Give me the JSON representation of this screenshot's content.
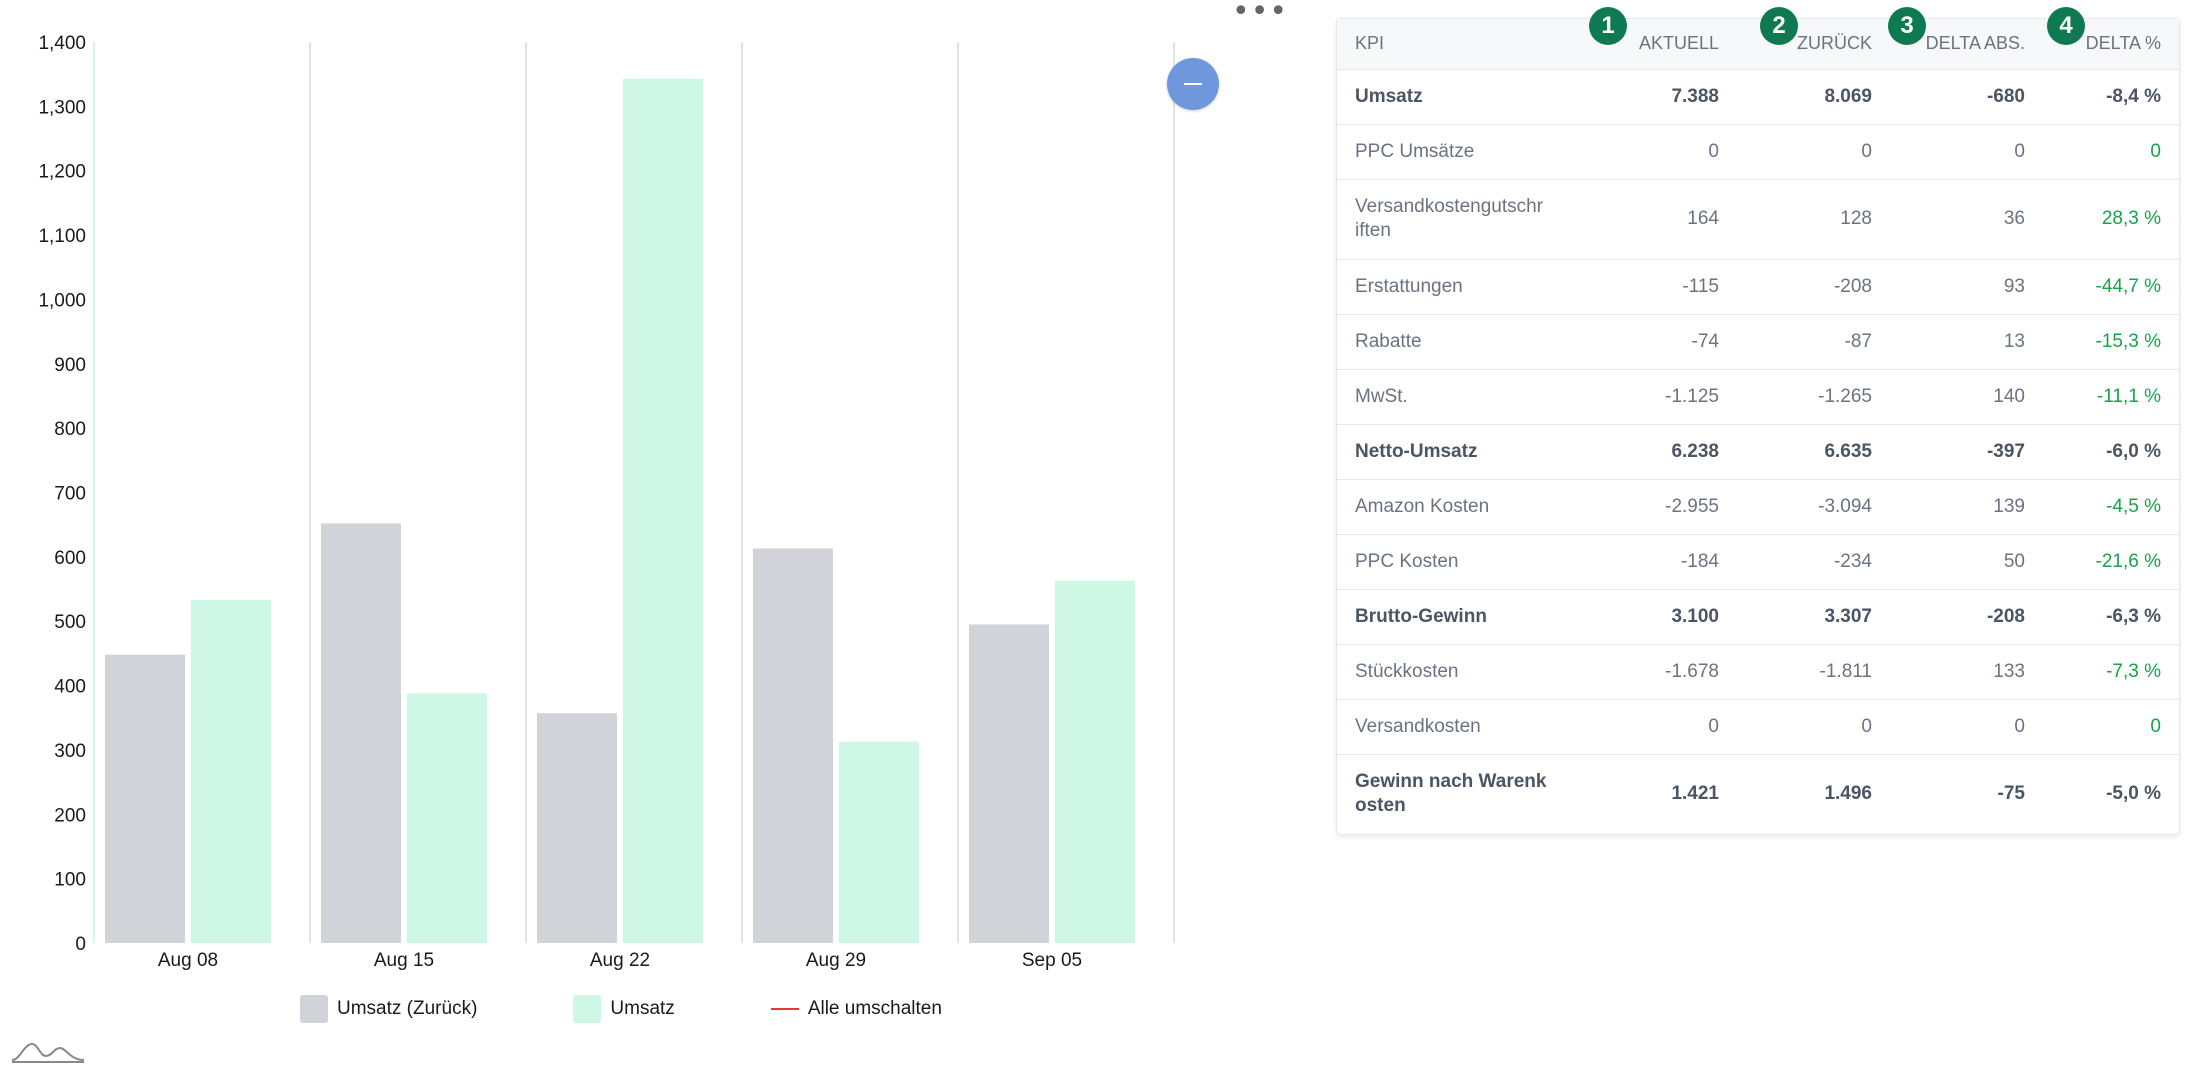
{
  "chart_data": {
    "type": "bar",
    "categories": [
      "Aug 08",
      "Aug 15",
      "Aug 22",
      "Aug 29",
      "Sep 05"
    ],
    "series": [
      {
        "name": "Umsatz (Zurück)",
        "values": [
          448,
          652,
          357,
          613,
          495
        ],
        "color": "#d1d3d9"
      },
      {
        "name": "Umsatz",
        "values": [
          533,
          388,
          1343,
          313,
          563
        ],
        "color": "#cff7e5"
      }
    ],
    "ylim": [
      0,
      1400
    ],
    "y_ticks": [
      "0",
      "100",
      "200",
      "300",
      "400",
      "500",
      "600",
      "700",
      "800",
      "900",
      "1,000",
      "1,100",
      "1,200",
      "1,300",
      "1,400"
    ],
    "grid": "vertical separators between categories",
    "legend_position": "bottom",
    "title": "",
    "xlabel": "",
    "ylabel": ""
  },
  "legend": {
    "items": [
      {
        "label": "Umsatz (Zurück)",
        "color": "#d1d3d9"
      },
      {
        "label": "Umsatz",
        "color": "#cff7e5"
      },
      {
        "label": "Alle umschalten",
        "color": "#e53935"
      }
    ]
  },
  "icons": {
    "more": "more-horizontal-icon",
    "collapse": "minus-circle-icon",
    "logo": "mountain-logo-icon"
  },
  "table": {
    "headers": [
      "KPI",
      "AKTUELL",
      "ZURÜCK",
      "DELTA ABS.",
      "DELTA %"
    ],
    "badges": [
      "1",
      "2",
      "3",
      "4"
    ],
    "rows": [
      {
        "kpi": "Umsatz",
        "aktuell": "7.388",
        "zurueck": "8.069",
        "delta_abs": "-680",
        "delta_pct": "-8,4 %",
        "bold": true,
        "trend": "neg"
      },
      {
        "kpi": "PPC Umsätze",
        "aktuell": "0",
        "zurueck": "0",
        "delta_abs": "0",
        "delta_pct": "0",
        "bold": false,
        "trend": "pos"
      },
      {
        "kpi": "Versandkostengutschr iften",
        "aktuell": "164",
        "zurueck": "128",
        "delta_abs": "36",
        "delta_pct": "28,3 %",
        "bold": false,
        "trend": "pos",
        "tall": true
      },
      {
        "kpi": "Erstattungen",
        "aktuell": "-115",
        "zurueck": "-208",
        "delta_abs": "93",
        "delta_pct": "-44,7 %",
        "bold": false,
        "trend": "pos"
      },
      {
        "kpi": "Rabatte",
        "aktuell": "-74",
        "zurueck": "-87",
        "delta_abs": "13",
        "delta_pct": "-15,3 %",
        "bold": false,
        "trend": "pos"
      },
      {
        "kpi": "MwSt.",
        "aktuell": "-1.125",
        "zurueck": "-1.265",
        "delta_abs": "140",
        "delta_pct": "-11,1 %",
        "bold": false,
        "trend": "pos"
      },
      {
        "kpi": "Netto-Umsatz",
        "aktuell": "6.238",
        "zurueck": "6.635",
        "delta_abs": "-397",
        "delta_pct": "-6,0 %",
        "bold": true,
        "trend": "neg"
      },
      {
        "kpi": "Amazon Kosten",
        "aktuell": "-2.955",
        "zurueck": "-3.094",
        "delta_abs": "139",
        "delta_pct": "-4,5 %",
        "bold": false,
        "trend": "pos"
      },
      {
        "kpi": "PPC Kosten",
        "aktuell": "-184",
        "zurueck": "-234",
        "delta_abs": "50",
        "delta_pct": "-21,6 %",
        "bold": false,
        "trend": "pos"
      },
      {
        "kpi": "Brutto-Gewinn",
        "aktuell": "3.100",
        "zurueck": "3.307",
        "delta_abs": "-208",
        "delta_pct": "-6,3 %",
        "bold": true,
        "trend": "neg"
      },
      {
        "kpi": "Stückkosten",
        "aktuell": "-1.678",
        "zurueck": "-1.811",
        "delta_abs": "133",
        "delta_pct": "-7,3 %",
        "bold": false,
        "trend": "pos"
      },
      {
        "kpi": "Versandkosten",
        "aktuell": "0",
        "zurueck": "0",
        "delta_abs": "0",
        "delta_pct": "0",
        "bold": false,
        "trend": "pos"
      },
      {
        "kpi": "Gewinn nach Warenk osten",
        "aktuell": "1.421",
        "zurueck": "1.496",
        "delta_abs": "-75",
        "delta_pct": "-5,0 %",
        "bold": true,
        "trend": "neg",
        "tall": true
      }
    ]
  }
}
